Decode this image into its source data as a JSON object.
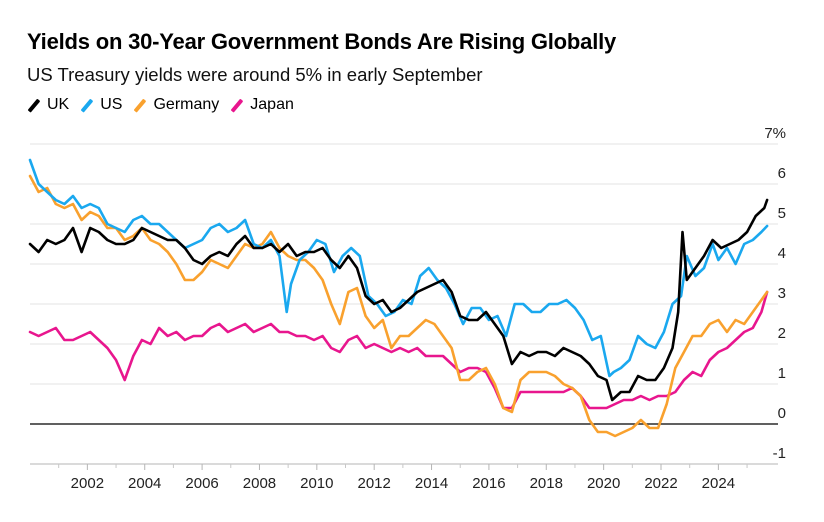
{
  "chart_data": {
    "type": "line",
    "title": "Yields on 30-Year Government Bonds Are Rising Globally",
    "subtitle": "US Treasury yields were around 5% in early September",
    "xlabel": "",
    "ylabel": "",
    "xlim": [
      2000.0,
      2025.8
    ],
    "ylim": [
      -1,
      7
    ],
    "x_ticks": [
      2002,
      2004,
      2006,
      2008,
      2010,
      2012,
      2014,
      2016,
      2018,
      2020,
      2022,
      2024
    ],
    "x_tick_labels": [
      "2002",
      "2004",
      "2006",
      "2008",
      "2010",
      "2012",
      "2014",
      "2016",
      "2018",
      "2020",
      "2022",
      "2024"
    ],
    "y_ticks": [
      -1,
      0,
      1,
      2,
      3,
      4,
      5,
      6,
      7
    ],
    "y_tick_labels": [
      "-1",
      "0",
      "1",
      "2",
      "3",
      "4",
      "5",
      "6",
      "7%"
    ],
    "grid": "horizontal",
    "legend_position": "top-left",
    "series": [
      {
        "name": "UK",
        "color": "#000000",
        "x": [
          2000.0,
          2000.3,
          2000.6,
          2000.9,
          2001.2,
          2001.5,
          2001.8,
          2002.1,
          2002.4,
          2002.7,
          2003.0,
          2003.3,
          2003.6,
          2003.9,
          2004.2,
          2004.5,
          2004.8,
          2005.1,
          2005.4,
          2005.7,
          2006.0,
          2006.3,
          2006.6,
          2006.9,
          2007.2,
          2007.5,
          2007.8,
          2008.1,
          2008.4,
          2008.7,
          2009.0,
          2009.3,
          2009.6,
          2009.9,
          2010.2,
          2010.5,
          2010.8,
          2011.1,
          2011.4,
          2011.7,
          2012.0,
          2012.3,
          2012.6,
          2012.9,
          2013.2,
          2013.5,
          2013.8,
          2014.1,
          2014.4,
          2014.7,
          2015.0,
          2015.3,
          2015.6,
          2015.9,
          2016.2,
          2016.5,
          2016.8,
          2017.1,
          2017.4,
          2017.7,
          2018.0,
          2018.3,
          2018.6,
          2018.9,
          2019.2,
          2019.5,
          2019.8,
          2020.1,
          2020.3,
          2020.6,
          2020.9,
          2021.2,
          2021.5,
          2021.8,
          2022.1,
          2022.4,
          2022.6,
          2022.75,
          2022.9,
          2023.2,
          2023.5,
          2023.8,
          2024.1,
          2024.4,
          2024.7,
          2025.0,
          2025.3,
          2025.6,
          2025.7
        ],
        "values": [
          4.5,
          4.3,
          4.6,
          4.5,
          4.6,
          4.9,
          4.3,
          4.9,
          4.8,
          4.6,
          4.5,
          4.5,
          4.6,
          4.9,
          4.8,
          4.7,
          4.6,
          4.6,
          4.4,
          4.1,
          4.0,
          4.2,
          4.3,
          4.2,
          4.5,
          4.7,
          4.4,
          4.4,
          4.5,
          4.3,
          4.5,
          4.2,
          4.3,
          4.3,
          4.4,
          4.1,
          3.9,
          4.2,
          3.9,
          3.2,
          3.0,
          3.1,
          2.8,
          2.9,
          3.1,
          3.3,
          3.4,
          3.5,
          3.6,
          3.3,
          2.7,
          2.6,
          2.6,
          2.8,
          2.5,
          2.2,
          1.5,
          1.8,
          1.7,
          1.8,
          1.8,
          1.7,
          1.9,
          1.8,
          1.7,
          1.5,
          1.2,
          1.1,
          0.6,
          0.8,
          0.8,
          1.2,
          1.1,
          1.1,
          1.4,
          1.9,
          2.8,
          4.8,
          3.6,
          3.9,
          4.2,
          4.6,
          4.4,
          4.5,
          4.6,
          4.8,
          5.2,
          5.4,
          5.6
        ]
      },
      {
        "name": "US",
        "color": "#1aa8ef",
        "x": [
          2000.0,
          2000.3,
          2000.6,
          2000.9,
          2001.2,
          2001.5,
          2001.8,
          2002.1,
          2002.4,
          2002.7,
          2003.0,
          2003.3,
          2003.6,
          2003.9,
          2004.2,
          2004.5,
          2004.8,
          2005.1,
          2005.4,
          2005.7,
          2006.0,
          2006.3,
          2006.6,
          2006.9,
          2007.2,
          2007.5,
          2007.8,
          2008.1,
          2008.4,
          2008.7,
          2008.95,
          2009.1,
          2009.4,
          2009.7,
          2010.0,
          2010.3,
          2010.6,
          2010.9,
          2011.2,
          2011.5,
          2011.8,
          2012.1,
          2012.4,
          2012.7,
          2013.0,
          2013.3,
          2013.6,
          2013.9,
          2014.2,
          2014.5,
          2014.8,
          2015.1,
          2015.4,
          2015.7,
          2016.0,
          2016.3,
          2016.6,
          2016.9,
          2017.2,
          2017.5,
          2017.8,
          2018.1,
          2018.4,
          2018.7,
          2019.0,
          2019.3,
          2019.6,
          2019.9,
          2020.2,
          2020.35,
          2020.6,
          2020.9,
          2021.2,
          2021.5,
          2021.8,
          2022.1,
          2022.4,
          2022.7,
          2022.9,
          2023.2,
          2023.5,
          2023.8,
          2024.0,
          2024.3,
          2024.6,
          2024.9,
          2025.2,
          2025.5,
          2025.7
        ],
        "values": [
          6.6,
          6.0,
          5.8,
          5.6,
          5.5,
          5.7,
          5.4,
          5.5,
          5.4,
          5.0,
          4.9,
          4.8,
          5.1,
          5.2,
          5.0,
          5.0,
          4.8,
          4.6,
          4.4,
          4.5,
          4.6,
          4.9,
          5.0,
          4.8,
          4.9,
          5.1,
          4.5,
          4.4,
          4.6,
          4.2,
          2.8,
          3.5,
          4.1,
          4.3,
          4.6,
          4.5,
          3.8,
          4.2,
          4.4,
          4.2,
          3.2,
          3.0,
          2.7,
          2.8,
          3.1,
          3.0,
          3.7,
          3.9,
          3.6,
          3.4,
          3.0,
          2.5,
          2.9,
          2.9,
          2.6,
          2.7,
          2.2,
          3.0,
          3.0,
          2.8,
          2.8,
          3.0,
          3.0,
          3.1,
          2.9,
          2.6,
          2.1,
          2.2,
          1.2,
          1.3,
          1.4,
          1.6,
          2.2,
          2.0,
          1.9,
          2.3,
          3.0,
          3.2,
          4.2,
          3.7,
          3.9,
          4.5,
          4.1,
          4.4,
          4.0,
          4.5,
          4.6,
          4.8,
          4.95
        ]
      },
      {
        "name": "Germany",
        "color": "#f9a12e",
        "x": [
          2000.0,
          2000.3,
          2000.6,
          2000.9,
          2001.2,
          2001.5,
          2001.8,
          2002.1,
          2002.4,
          2002.7,
          2003.0,
          2003.3,
          2003.6,
          2003.9,
          2004.2,
          2004.5,
          2004.8,
          2005.1,
          2005.4,
          2005.7,
          2006.0,
          2006.3,
          2006.6,
          2006.9,
          2007.2,
          2007.5,
          2007.8,
          2008.1,
          2008.4,
          2008.7,
          2009.0,
          2009.3,
          2009.6,
          2009.9,
          2010.2,
          2010.5,
          2010.8,
          2011.1,
          2011.4,
          2011.7,
          2012.0,
          2012.3,
          2012.6,
          2012.9,
          2013.2,
          2013.5,
          2013.8,
          2014.1,
          2014.4,
          2014.7,
          2015.0,
          2015.3,
          2015.6,
          2015.9,
          2016.2,
          2016.5,
          2016.8,
          2017.1,
          2017.4,
          2017.7,
          2018.0,
          2018.3,
          2018.6,
          2018.9,
          2019.2,
          2019.5,
          2019.8,
          2020.1,
          2020.4,
          2020.7,
          2021.0,
          2021.3,
          2021.6,
          2021.9,
          2022.2,
          2022.5,
          2022.8,
          2023.1,
          2023.4,
          2023.7,
          2024.0,
          2024.3,
          2024.6,
          2024.9,
          2025.2,
          2025.5,
          2025.7
        ],
        "values": [
          6.2,
          5.8,
          5.9,
          5.5,
          5.4,
          5.5,
          5.1,
          5.3,
          5.2,
          4.9,
          4.9,
          4.6,
          4.7,
          4.9,
          4.6,
          4.5,
          4.3,
          4.0,
          3.6,
          3.6,
          3.8,
          4.1,
          4.0,
          3.9,
          4.2,
          4.5,
          4.4,
          4.5,
          4.8,
          4.4,
          4.2,
          4.1,
          4.1,
          3.9,
          3.6,
          3.0,
          2.5,
          3.3,
          3.4,
          2.7,
          2.4,
          2.6,
          1.9,
          2.2,
          2.2,
          2.4,
          2.6,
          2.5,
          2.2,
          1.9,
          1.1,
          1.1,
          1.3,
          1.4,
          1.0,
          0.4,
          0.3,
          1.1,
          1.3,
          1.3,
          1.3,
          1.2,
          1.0,
          0.9,
          0.7,
          0.1,
          -0.2,
          -0.2,
          -0.3,
          -0.2,
          -0.1,
          0.1,
          -0.1,
          -0.1,
          0.5,
          1.4,
          1.8,
          2.2,
          2.2,
          2.5,
          2.6,
          2.3,
          2.6,
          2.5,
          2.8,
          3.1,
          3.3
        ]
      },
      {
        "name": "Japan",
        "color": "#e8168e",
        "x": [
          2000.0,
          2000.3,
          2000.6,
          2000.9,
          2001.2,
          2001.5,
          2001.8,
          2002.1,
          2002.4,
          2002.7,
          2003.0,
          2003.3,
          2003.6,
          2003.9,
          2004.2,
          2004.5,
          2004.8,
          2005.1,
          2005.4,
          2005.7,
          2006.0,
          2006.3,
          2006.6,
          2006.9,
          2007.2,
          2007.5,
          2007.8,
          2008.1,
          2008.4,
          2008.7,
          2009.0,
          2009.3,
          2009.6,
          2009.9,
          2010.2,
          2010.5,
          2010.8,
          2011.1,
          2011.4,
          2011.7,
          2012.0,
          2012.3,
          2012.6,
          2012.9,
          2013.2,
          2013.5,
          2013.8,
          2014.1,
          2014.4,
          2014.7,
          2015.0,
          2015.3,
          2015.6,
          2015.9,
          2016.2,
          2016.5,
          2016.8,
          2017.1,
          2017.4,
          2017.7,
          2018.0,
          2018.3,
          2018.6,
          2018.9,
          2019.2,
          2019.5,
          2019.8,
          2020.1,
          2020.4,
          2020.7,
          2021.0,
          2021.3,
          2021.6,
          2021.9,
          2022.2,
          2022.5,
          2022.8,
          2023.1,
          2023.4,
          2023.7,
          2024.0,
          2024.3,
          2024.6,
          2024.9,
          2025.2,
          2025.5,
          2025.7
        ],
        "values": [
          2.3,
          2.2,
          2.3,
          2.4,
          2.1,
          2.1,
          2.2,
          2.3,
          2.1,
          1.9,
          1.6,
          1.1,
          1.7,
          2.1,
          2.0,
          2.4,
          2.2,
          2.3,
          2.1,
          2.2,
          2.2,
          2.4,
          2.5,
          2.3,
          2.4,
          2.5,
          2.3,
          2.4,
          2.5,
          2.3,
          2.3,
          2.2,
          2.2,
          2.1,
          2.2,
          1.9,
          1.8,
          2.1,
          2.2,
          1.9,
          2.0,
          1.9,
          1.8,
          1.9,
          1.8,
          1.9,
          1.7,
          1.7,
          1.7,
          1.5,
          1.3,
          1.4,
          1.4,
          1.3,
          0.9,
          0.4,
          0.4,
          0.8,
          0.8,
          0.8,
          0.8,
          0.8,
          0.8,
          0.9,
          0.7,
          0.4,
          0.4,
          0.4,
          0.5,
          0.6,
          0.6,
          0.7,
          0.6,
          0.7,
          0.7,
          0.8,
          1.1,
          1.3,
          1.2,
          1.6,
          1.8,
          1.9,
          2.1,
          2.3,
          2.4,
          2.8,
          3.3
        ]
      }
    ]
  }
}
